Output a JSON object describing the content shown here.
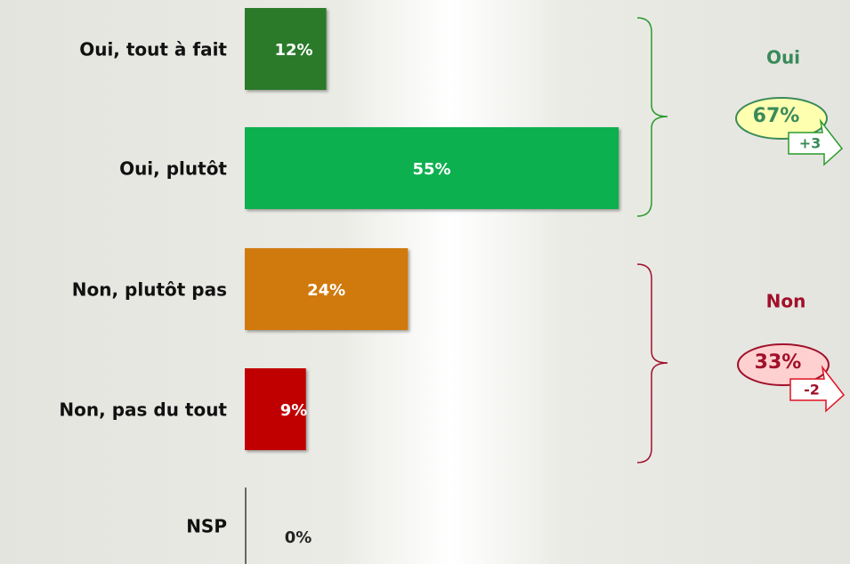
{
  "chart_data": {
    "type": "bar",
    "orientation": "horizontal",
    "categories": [
      "Oui, tout à fait",
      "Oui, plutôt",
      "Non, plutôt pas",
      "Non, pas du tout",
      "NSP"
    ],
    "values": [
      12,
      55,
      24,
      9,
      0
    ],
    "value_labels": [
      "12%",
      "55%",
      "24%",
      "9%",
      "0%"
    ],
    "colors": [
      "#2a7a2a",
      "#10b050",
      "#d07a08",
      "#c00000",
      "#666666"
    ],
    "groups": [
      {
        "label": "Oui",
        "total": "67%",
        "change": "+3",
        "color": "#3a8a5a",
        "fill": "#ffffb0"
      },
      {
        "label": "Non",
        "total": "33%",
        "change": "-2",
        "color": "#a0102a",
        "fill": "#ffd0d0"
      }
    ]
  }
}
